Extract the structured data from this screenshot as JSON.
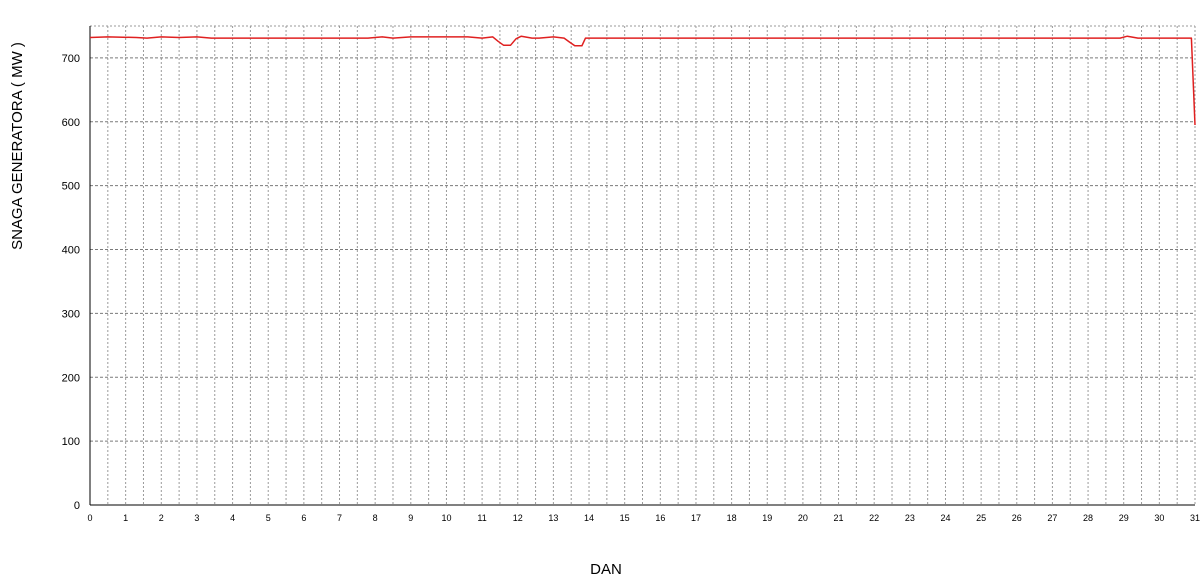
{
  "chart_data": {
    "type": "line",
    "title": "",
    "xlabel": "DAN",
    "ylabel": "SNAGA GENERATORA ( MW )",
    "xlim": [
      0,
      31
    ],
    "ylim": [
      0,
      750
    ],
    "x_ticks": [
      0,
      1,
      2,
      3,
      4,
      5,
      6,
      7,
      8,
      9,
      10,
      11,
      12,
      13,
      14,
      15,
      16,
      17,
      18,
      19,
      20,
      21,
      22,
      23,
      24,
      25,
      26,
      27,
      28,
      29,
      30,
      31
    ],
    "y_ticks": [
      0,
      100,
      200,
      300,
      400,
      500,
      600,
      700
    ],
    "grid": true,
    "grid_minor_x_step": 0.5,
    "legend": "none",
    "series": [
      {
        "color": "#e02020",
        "x": [
          0,
          0.5,
          1.3,
          1.6,
          2.0,
          2.5,
          3.0,
          3.4,
          4.0,
          5.0,
          6.0,
          7.0,
          7.8,
          8.2,
          8.5,
          9.0,
          10.0,
          10.6,
          11.0,
          11.3,
          11.45,
          11.6,
          11.8,
          11.95,
          12.1,
          12.4,
          12.6,
          13.0,
          13.3,
          13.45,
          13.6,
          13.8,
          13.9,
          14.0,
          14.5,
          15,
          16,
          17,
          18,
          19,
          20,
          21,
          22,
          23,
          24,
          25,
          26,
          27,
          28,
          28.9,
          29.1,
          29.4,
          30,
          30.9,
          31.0
        ],
        "values": [
          732,
          733,
          732,
          731,
          733,
          732,
          733,
          731,
          731,
          731,
          731,
          731,
          731,
          733,
          731,
          733,
          733,
          733,
          731,
          733,
          726,
          720,
          720,
          730,
          734,
          731,
          731,
          733,
          731,
          725,
          719,
          719,
          731,
          731,
          731,
          731,
          731,
          731,
          731,
          731,
          731,
          731,
          731,
          731,
          731,
          731,
          731,
          731,
          731,
          731,
          734,
          731,
          731,
          731,
          595
        ]
      }
    ]
  }
}
